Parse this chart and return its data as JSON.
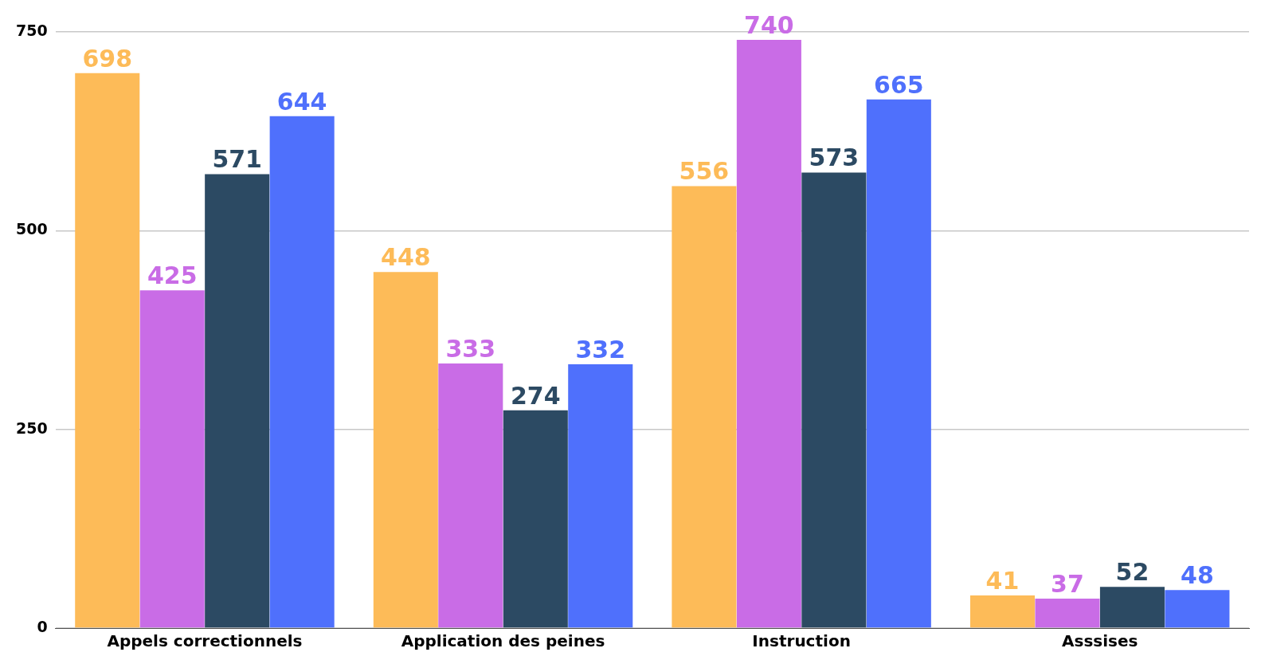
{
  "chart_data": {
    "type": "bar",
    "categories": [
      "Appels correctionnels",
      "Application des peines",
      "Instruction",
      "Asssises"
    ],
    "series": [
      {
        "color": "#fdbb58",
        "values": [
          698,
          448,
          556,
          41
        ]
      },
      {
        "color": "#c96ce6",
        "values": [
          425,
          333,
          740,
          37
        ]
      },
      {
        "color": "#2c4a63",
        "values": [
          571,
          274,
          573,
          52
        ]
      },
      {
        "color": "#4f70fc",
        "values": [
          644,
          332,
          665,
          48
        ]
      }
    ],
    "ylim": [
      0,
      750
    ],
    "yticks": [
      0,
      250,
      500,
      750
    ],
    "grid": "y",
    "legend": false,
    "data_labels": true
  }
}
